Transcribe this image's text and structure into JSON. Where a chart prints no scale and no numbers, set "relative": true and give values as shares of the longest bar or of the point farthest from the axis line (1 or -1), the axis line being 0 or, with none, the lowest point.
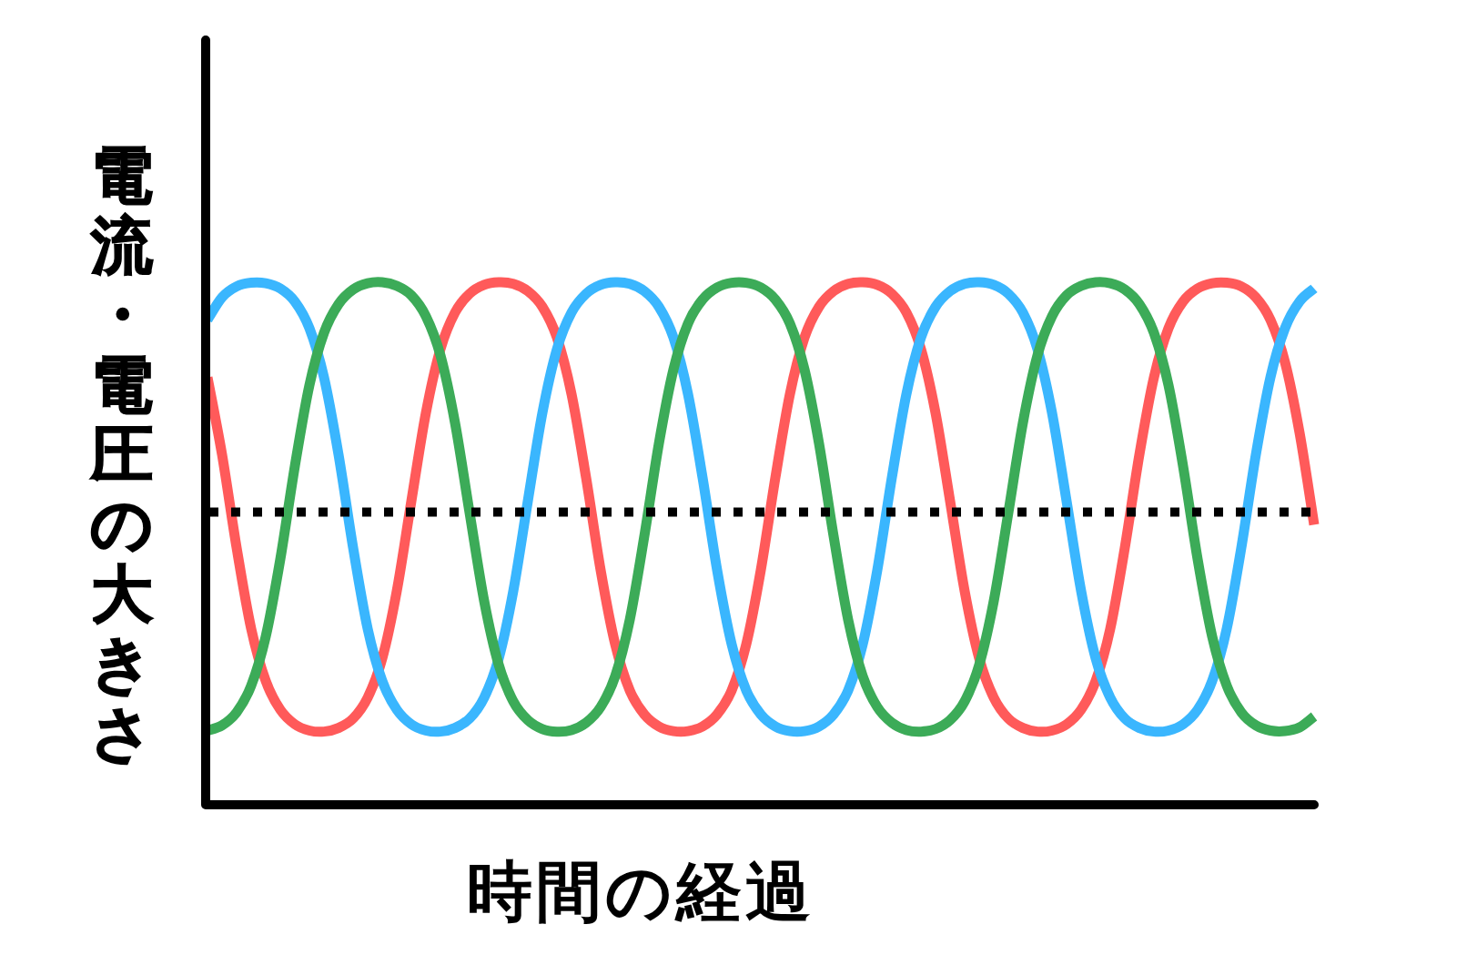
{
  "chart_data": {
    "type": "line",
    "relative": true,
    "xlabel": "時間の経過",
    "ylabel": "電流・電圧の大きさ",
    "categories": [
      null,
      null,
      null,
      null,
      null,
      null,
      null,
      null,
      null,
      null,
      null,
      null,
      null,
      null,
      null,
      null,
      null,
      null,
      null,
      null,
      null,
      null,
      null,
      null,
      null,
      null,
      null,
      null,
      null,
      null,
      null,
      null,
      null,
      null,
      null,
      null,
      null,
      null,
      null,
      null,
      null,
      null,
      null,
      null,
      null,
      null,
      null,
      null,
      null,
      null,
      null,
      null,
      null,
      null,
      null,
      null,
      null,
      null,
      null,
      null,
      null,
      null,
      null,
      null,
      null,
      null,
      null,
      null,
      null,
      null,
      null,
      null,
      null,
      null,
      null,
      null,
      null
    ],
    "series": [
      {
        "color": "#ff5a5a",
        "values": [
          0.818,
          0.67,
          0.492,
          0.337,
          0.237,
          0.182,
          0.154,
          0.142,
          0.14,
          0.147,
          0.165,
          0.205,
          0.28,
          0.409,
          0.581,
          0.75,
          0.872,
          0.942,
          0.978,
          0.995,
          1.0,
          0.997,
          0.983,
          0.953,
          0.894,
          0.786,
          0.626,
          0.449,
          0.307,
          0.219,
          0.173,
          0.15,
          0.141,
          0.141,
          0.15,
          0.173,
          0.219,
          0.307,
          0.449,
          0.626,
          0.786,
          0.894,
          0.953,
          0.983,
          0.997,
          1.0,
          0.995,
          0.978,
          0.942,
          0.872,
          0.75,
          0.581,
          0.409,
          0.28,
          0.205,
          0.165,
          0.147,
          0.14,
          0.142,
          0.154,
          0.182,
          0.237,
          0.337,
          0.492,
          0.67,
          0.818,
          0.912,
          0.963,
          0.988,
          0.998,
          0.999,
          0.992,
          0.971,
          0.928,
          0.847,
          0.712,
          0.536
        ]
      },
      {
        "color": "#3ab6fe",
        "values": [
          0.928,
          0.971,
          0.992,
          0.999,
          0.998,
          0.988,
          0.963,
          0.912,
          0.818,
          0.67,
          0.492,
          0.337,
          0.237,
          0.182,
          0.154,
          0.142,
          0.14,
          0.147,
          0.165,
          0.205,
          0.28,
          0.409,
          0.581,
          0.75,
          0.872,
          0.942,
          0.978,
          0.995,
          1.0,
          0.997,
          0.983,
          0.953,
          0.894,
          0.786,
          0.626,
          0.449,
          0.307,
          0.219,
          0.173,
          0.15,
          0.141,
          0.141,
          0.15,
          0.173,
          0.219,
          0.307,
          0.449,
          0.626,
          0.786,
          0.894,
          0.953,
          0.983,
          0.997,
          1.0,
          0.995,
          0.978,
          0.942,
          0.872,
          0.75,
          0.581,
          0.409,
          0.28,
          0.205,
          0.165,
          0.147,
          0.14,
          0.142,
          0.154,
          0.182,
          0.237,
          0.337,
          0.492,
          0.67,
          0.818,
          0.912,
          0.963,
          0.988
        ]
      },
      {
        "color": "#3cab58",
        "values": [
          0.142,
          0.152,
          0.177,
          0.228,
          0.322,
          0.47,
          0.648,
          0.803,
          0.903,
          0.958,
          0.986,
          0.998,
          1.0,
          0.993,
          0.975,
          0.935,
          0.86,
          0.731,
          0.559,
          0.39,
          0.268,
          0.198,
          0.162,
          0.145,
          0.14,
          0.143,
          0.157,
          0.187,
          0.246,
          0.354,
          0.514,
          0.691,
          0.833,
          0.921,
          0.967,
          0.99,
          0.999,
          0.999,
          0.99,
          0.967,
          0.921,
          0.833,
          0.691,
          0.514,
          0.354,
          0.246,
          0.187,
          0.157,
          0.143,
          0.14,
          0.145,
          0.162,
          0.198,
          0.268,
          0.39,
          0.559,
          0.731,
          0.86,
          0.935,
          0.975,
          0.993,
          1.0,
          0.998,
          0.986,
          0.958,
          0.903,
          0.803,
          0.648,
          0.47,
          0.322,
          0.228,
          0.177,
          0.152,
          0.142,
          0.141,
          0.148,
          0.169
        ]
      }
    ],
    "ref_lines": [
      {
        "axis": "y",
        "value": 0.56,
        "color": "#000000",
        "line_style": "dotted"
      }
    ],
    "marker": "none",
    "line_style": "solid"
  }
}
